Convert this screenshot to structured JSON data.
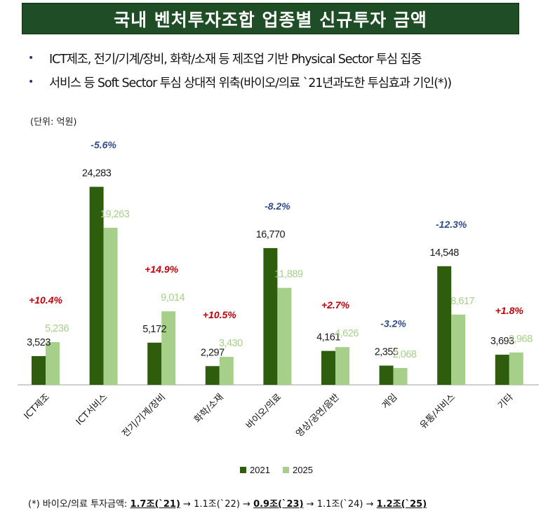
{
  "header": {
    "title": "국내 벤처투자조합 업종별 신규투자 금액"
  },
  "bullets": [
    "ICT제조, 전기/기계/장비, 화학/소재 등 제조업 기반 Physical Sector 투심 집중",
    "서비스 등 Soft Sector 투심 상대적 위축(바이오/의료 `21년과도한 투심효과 기인(*))"
  ],
  "unit_label": "(단위: 억원)",
  "footnote": {
    "prefix": "(*) 바이오/의료 투자금액: ",
    "p1": "1.7조(`21)",
    "a1": " → 1.1조(`22) → ",
    "p2": "0.9조(`23)",
    "a2": " → 1.1조(`24) → ",
    "p3": "1.2조(`25)"
  },
  "colors": {
    "s2021": "#2e5e0d",
    "s2025": "#a6d08a",
    "positive": "#c0000a",
    "negative": "#2f4b8a",
    "title_bg": "#1f4d25"
  },
  "chart_data": {
    "type": "bar",
    "categories": [
      "ICT제조",
      "ICT서비스",
      "전기/기계/장비",
      "화학/소재",
      "바이오/의료",
      "영상/공연/음반",
      "게임",
      "유통/서비스",
      "기타"
    ],
    "series": [
      {
        "name": "2021",
        "values": [
          3523,
          24283,
          5172,
          2297,
          16770,
          4161,
          2355,
          14548,
          3693
        ],
        "labels": [
          "3,523",
          "24,283",
          "5,172",
          "2,297",
          "16,770",
          "4,161",
          "2,355",
          "14,548",
          "3,693"
        ]
      },
      {
        "name": "2025",
        "values": [
          5236,
          19263,
          9014,
          3430,
          11889,
          4626,
          2068,
          8617,
          3968
        ],
        "labels": [
          "5,236",
          "19,263",
          "9,014",
          "3,430",
          "11,889",
          "4,626",
          "2,068",
          "8,617",
          "3,968"
        ]
      }
    ],
    "annotations": [
      "+10.4%",
      "-5.6%",
      "+14.9%",
      "+10.5%",
      "-8.2%",
      "+2.7%",
      "-3.2%",
      "-12.3%",
      "+1.8%"
    ],
    "ylim": [
      0,
      30000
    ],
    "legend_position": "bottom-center",
    "grid": false
  }
}
